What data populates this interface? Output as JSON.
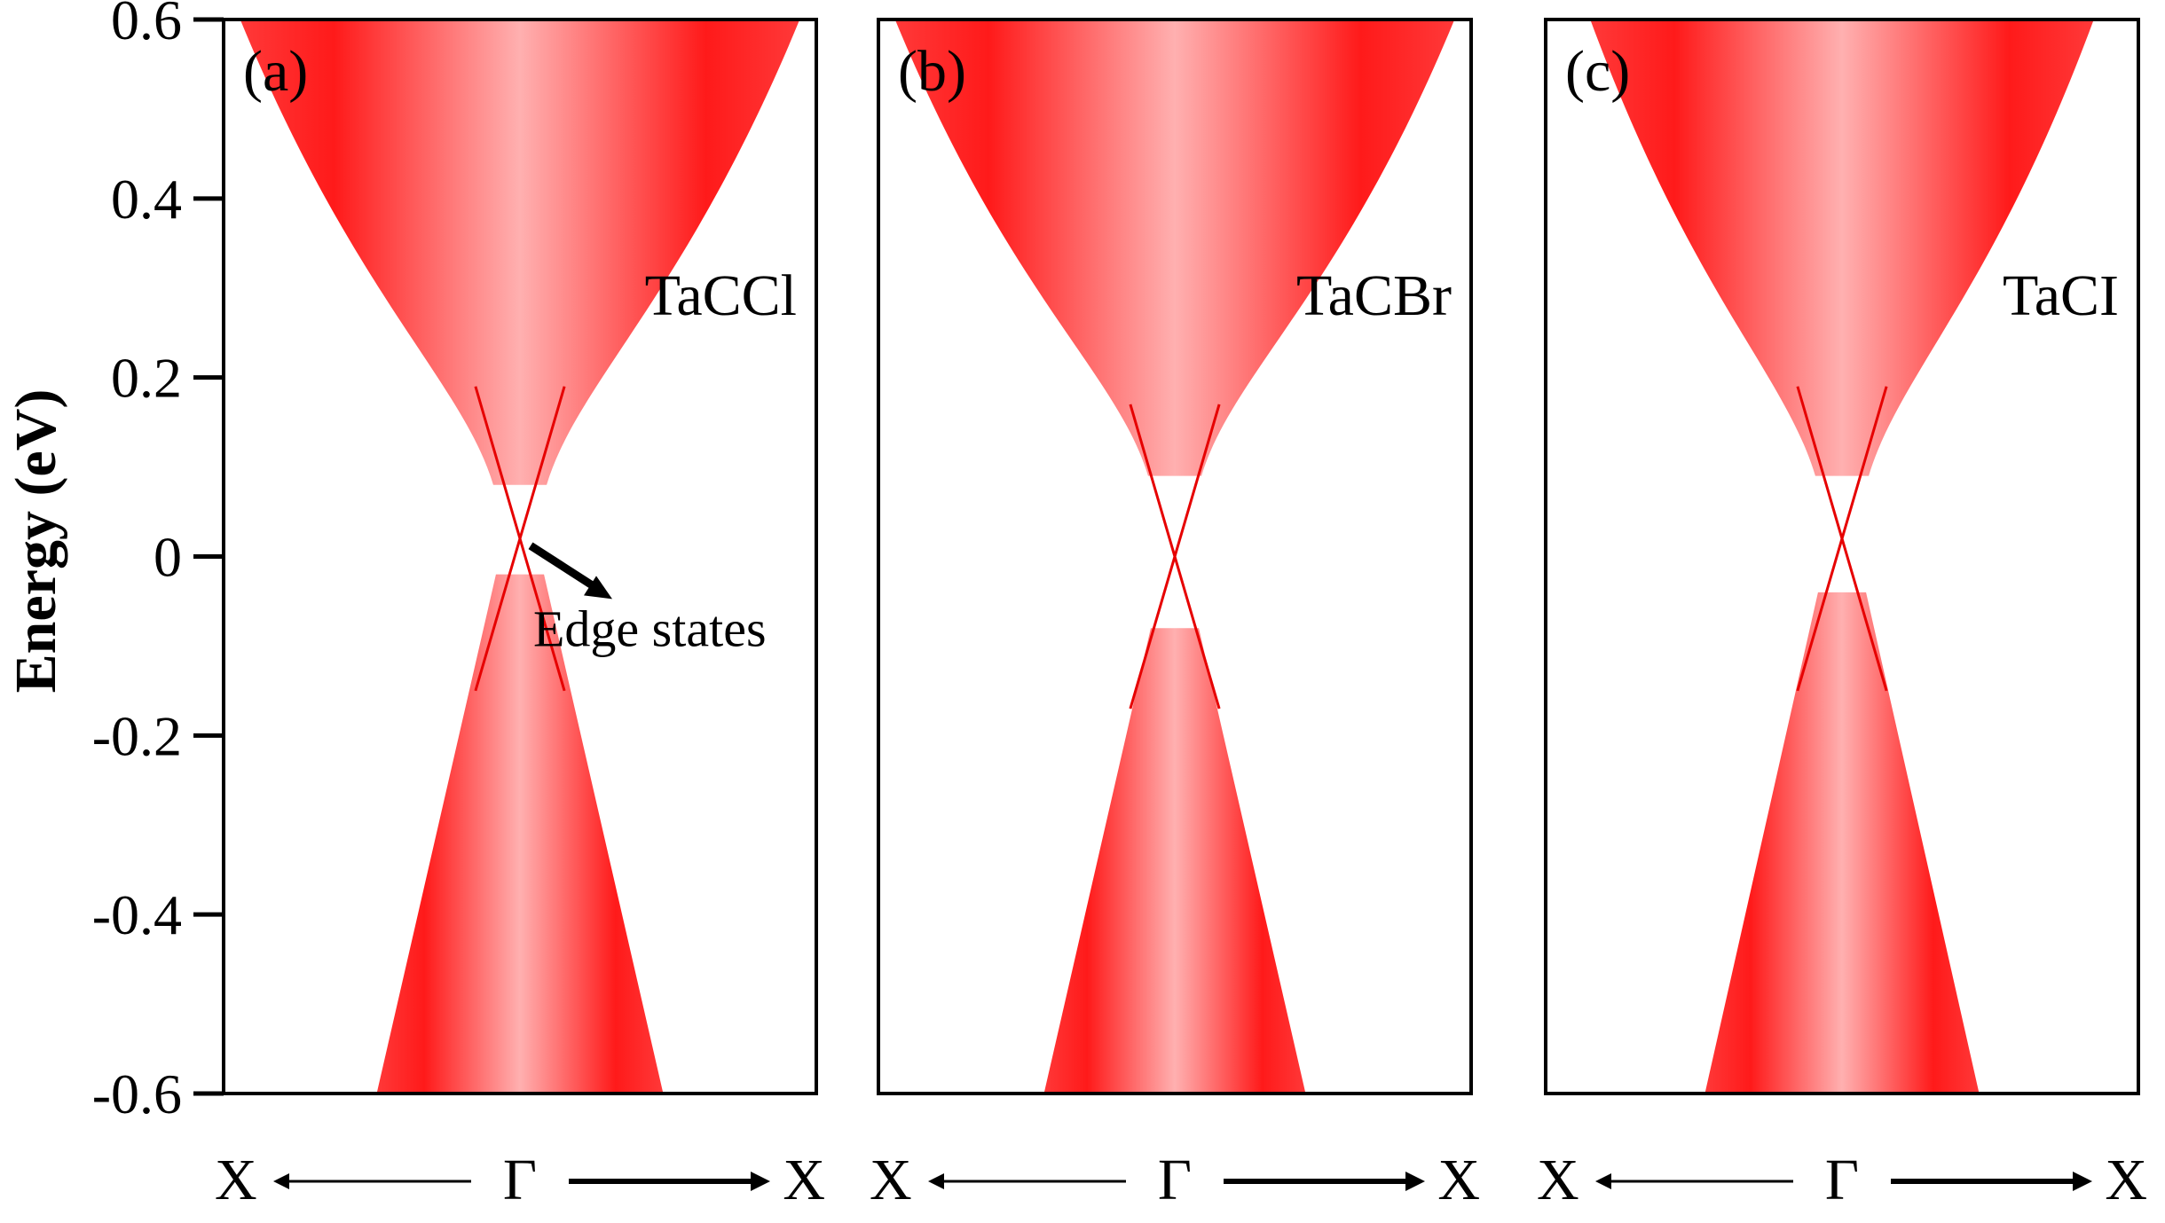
{
  "colors": {
    "band_edge": "#ff1a1a",
    "band_core": "#ffb0b0",
    "edge_state": "#e60000",
    "frame": "#000000",
    "arrow": "#000000"
  },
  "chart_data": {
    "type": "area",
    "ylabel": "Energy (eV)",
    "ylim": [
      -0.6,
      0.6
    ],
    "y_ticks": [
      0.6,
      0.4,
      0.2,
      0,
      -0.2,
      -0.4,
      -0.6
    ],
    "y_tick_labels": [
      "0.6",
      "0.4",
      "0.2",
      "0",
      "-0.2",
      "-0.4",
      "-0.6"
    ],
    "x_path": {
      "left": "X",
      "center": "Γ",
      "right": "X"
    },
    "annotation": {
      "text": "Edge states",
      "panel": "(a)"
    },
    "panels": [
      {
        "tag": "(a)",
        "material": "TaCCl",
        "dirac_point_energy": 0.02,
        "conduction_band_bottom": 0.08,
        "valence_band_top": -0.02,
        "conduction_halfwidth_at_top": 0.5,
        "valence_halfwidth_at_bottom": 0.24
      },
      {
        "tag": "(b)",
        "material": "TaCBr",
        "dirac_point_energy": 0.0,
        "conduction_band_bottom": 0.09,
        "valence_band_top": -0.08,
        "conduction_halfwidth_at_top": 0.5,
        "valence_halfwidth_at_bottom": 0.22
      },
      {
        "tag": "(c)",
        "material": "TaCI",
        "dirac_point_energy": 0.02,
        "conduction_band_bottom": 0.09,
        "valence_band_top": -0.04,
        "conduction_halfwidth_at_top": 0.45,
        "valence_halfwidth_at_bottom": 0.23
      }
    ]
  }
}
